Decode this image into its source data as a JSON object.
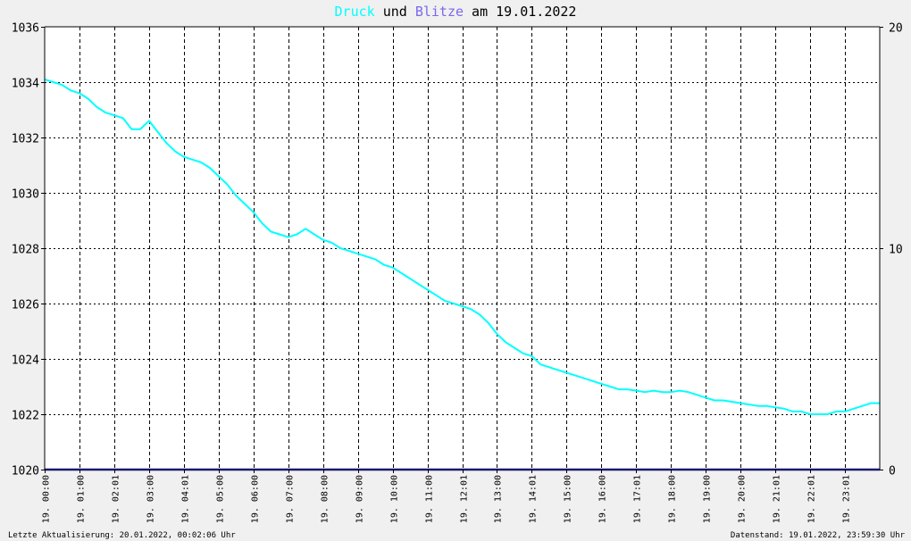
{
  "title": {
    "word1": "Druck",
    "word2": " und ",
    "word3": "Blitze",
    "word4": " am 19.01.2022"
  },
  "colors": {
    "pressure": "#00ffff",
    "lightning": "#7b68ee",
    "title_text": "#000000",
    "baseline": "#191970",
    "background": "#f0f0f0",
    "plot_background": "#ffffff",
    "grid": "#000000"
  },
  "footer": {
    "left": "Letzte Aktualisierung: 20.01.2022, 00:02:06 Uhr",
    "right": "Datenstand: 19.01.2022, 23:59:30 Uhr"
  },
  "chart_data": {
    "type": "line",
    "title": "Druck und Blitze am 19.01.2022",
    "x_start": "19.01.2022 00:00",
    "x_end": "20.01.2022 00:00",
    "x_tick_labels": [
      "19. 00:00",
      "19. 01:00",
      "19. 02:01",
      "19. 03:00",
      "19. 04:01",
      "19. 05:00",
      "19. 06:00",
      "19. 07:00",
      "19. 08:00",
      "19. 09:00",
      "19. 10:00",
      "19. 11:00",
      "19. 12:01",
      "19. 13:00",
      "19. 14:01",
      "19. 15:00",
      "19. 16:00",
      "19. 17:01",
      "19. 18:00",
      "19. 19:00",
      "19. 20:00",
      "19. 21:01",
      "19. 22:01",
      "19. 23:01"
    ],
    "x_tick_hours": [
      0,
      1,
      2,
      3,
      4,
      5,
      6,
      7,
      8,
      9,
      10,
      11,
      12,
      13,
      14,
      15,
      16,
      17,
      18,
      19,
      20,
      21,
      22,
      23
    ],
    "y_left": {
      "min": 1020,
      "max": 1036,
      "ticks": [
        1020,
        1022,
        1024,
        1026,
        1028,
        1030,
        1032,
        1034,
        1036
      ]
    },
    "y_right": {
      "min": 0,
      "max": 20,
      "ticks": [
        0,
        10,
        20
      ]
    },
    "grid": true,
    "series": [
      {
        "name": "Druck",
        "axis": "left",
        "x_hours": [
          0,
          0.25,
          0.5,
          0.75,
          1,
          1.25,
          1.5,
          1.75,
          2,
          2.25,
          2.5,
          2.75,
          3,
          3.25,
          3.5,
          3.75,
          4,
          4.25,
          4.5,
          4.75,
          5,
          5.25,
          5.5,
          5.75,
          6,
          6.25,
          6.5,
          6.75,
          7,
          7.25,
          7.5,
          7.75,
          8,
          8.25,
          8.5,
          8.75,
          9,
          9.25,
          9.5,
          9.75,
          10,
          10.25,
          10.5,
          10.75,
          11,
          11.25,
          11.5,
          11.75,
          12,
          12.25,
          12.5,
          12.75,
          13,
          13.25,
          13.5,
          13.75,
          14,
          14.25,
          14.5,
          14.75,
          15,
          15.25,
          15.5,
          15.75,
          16,
          16.25,
          16.5,
          16.75,
          17,
          17.25,
          17.5,
          17.75,
          18,
          18.25,
          18.5,
          18.75,
          19,
          19.25,
          19.5,
          19.75,
          20,
          20.25,
          20.5,
          20.75,
          21,
          21.25,
          21.5,
          21.75,
          22,
          22.25,
          22.5,
          22.75,
          23,
          23.25,
          23.5,
          23.75,
          24
        ],
        "values": [
          1034.1,
          1034.0,
          1033.9,
          1033.7,
          1033.6,
          1033.4,
          1033.1,
          1032.9,
          1032.8,
          1032.7,
          1032.3,
          1032.3,
          1032.6,
          1032.2,
          1031.8,
          1031.5,
          1031.3,
          1031.2,
          1031.1,
          1030.9,
          1030.6,
          1030.3,
          1029.9,
          1029.6,
          1029.3,
          1028.9,
          1028.6,
          1028.5,
          1028.4,
          1028.5,
          1028.7,
          1028.5,
          1028.3,
          1028.2,
          1028.0,
          1027.9,
          1027.8,
          1027.7,
          1027.6,
          1027.4,
          1027.3,
          1027.1,
          1026.9,
          1026.7,
          1026.5,
          1026.3,
          1026.1,
          1026.0,
          1025.9,
          1025.8,
          1025.6,
          1025.3,
          1024.9,
          1024.6,
          1024.4,
          1024.2,
          1024.1,
          1023.8,
          1023.7,
          1023.6,
          1023.5,
          1023.4,
          1023.3,
          1023.2,
          1023.1,
          1023.0,
          1022.9,
          1022.9,
          1022.85,
          1022.8,
          1022.85,
          1022.8,
          1022.8,
          1022.85,
          1022.8,
          1022.7,
          1022.6,
          1022.5,
          1022.5,
          1022.45,
          1022.4,
          1022.35,
          1022.3,
          1022.3,
          1022.25,
          1022.2,
          1022.1,
          1022.1,
          1022.0,
          1022.0,
          1022.0,
          1022.1,
          1022.1,
          1022.2,
          1022.3,
          1022.4,
          1022.4
        ]
      },
      {
        "name": "Blitze",
        "axis": "right",
        "x_hours": [
          0,
          24
        ],
        "values": [
          0,
          0
        ]
      }
    ]
  }
}
